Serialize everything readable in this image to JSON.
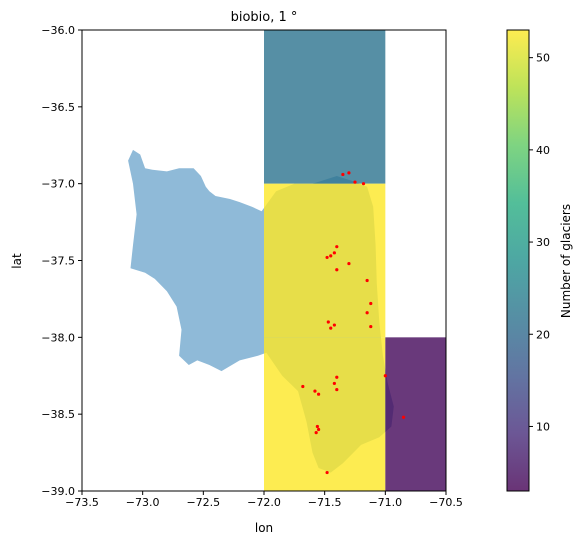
{
  "chart_data": {
    "type": "heatmap",
    "title": "biobio, 1 °",
    "xlabel": "lon",
    "ylabel": "lat",
    "xlim": [
      -73.5,
      -70.5
    ],
    "ylim": [
      -39.0,
      -36.0
    ],
    "x_ticks": [
      -73.5,
      -73.0,
      -72.5,
      -72.0,
      -71.5,
      -71.0,
      -70.5
    ],
    "x_tick_labels": [
      "−73.5",
      "−73.0",
      "−72.5",
      "−72.0",
      "−71.5",
      "−71.0",
      "−70.5"
    ],
    "y_ticks": [
      -36.0,
      -36.5,
      -37.0,
      -37.5,
      -38.0,
      -38.5,
      -39.0
    ],
    "y_tick_labels": [
      "−36.0",
      "−36.5",
      "−37.0",
      "−37.5",
      "−38.0",
      "−38.5",
      "−39.0"
    ],
    "grid": false,
    "cells": [
      {
        "lon_min": -72.0,
        "lon_max": -71.0,
        "lat_min": -37.0,
        "lat_max": -36.0,
        "value": 22
      },
      {
        "lon_min": -72.0,
        "lon_max": -71.0,
        "lat_min": -38.0,
        "lat_max": -37.0,
        "value": 53
      },
      {
        "lon_min": -72.0,
        "lon_max": -71.0,
        "lat_min": -39.0,
        "lat_max": -38.0,
        "value": 53
      },
      {
        "lon_min": -71.0,
        "lon_max": -70.5,
        "lat_min": -39.0,
        "lat_max": -38.0,
        "value": 4
      }
    ],
    "basin_outline": [
      [
        -73.08,
        -36.78
      ],
      [
        -73.02,
        -36.81
      ],
      [
        -72.98,
        -36.9
      ],
      [
        -72.92,
        -36.91
      ],
      [
        -72.8,
        -36.92
      ],
      [
        -72.7,
        -36.9
      ],
      [
        -72.58,
        -36.9
      ],
      [
        -72.52,
        -36.95
      ],
      [
        -72.48,
        -37.02
      ],
      [
        -72.45,
        -37.05
      ],
      [
        -72.4,
        -37.08
      ],
      [
        -72.28,
        -37.1
      ],
      [
        -72.2,
        -37.12
      ],
      [
        -72.1,
        -37.15
      ],
      [
        -72.02,
        -37.18
      ],
      [
        -71.9,
        -37.05
      ],
      [
        -71.75,
        -37.0
      ],
      [
        -71.6,
        -37.0
      ],
      [
        -71.4,
        -36.95
      ],
      [
        -71.28,
        -36.98
      ],
      [
        -71.15,
        -37.02
      ],
      [
        -71.1,
        -37.15
      ],
      [
        -71.08,
        -37.4
      ],
      [
        -71.07,
        -37.65
      ],
      [
        -71.05,
        -37.9
      ],
      [
        -71.02,
        -38.12
      ],
      [
        -70.98,
        -38.3
      ],
      [
        -70.93,
        -38.45
      ],
      [
        -70.95,
        -38.58
      ],
      [
        -71.05,
        -38.65
      ],
      [
        -71.2,
        -38.7
      ],
      [
        -71.35,
        -38.82
      ],
      [
        -71.45,
        -38.88
      ],
      [
        -71.55,
        -38.85
      ],
      [
        -71.6,
        -38.75
      ],
      [
        -71.65,
        -38.55
      ],
      [
        -71.72,
        -38.35
      ],
      [
        -71.85,
        -38.25
      ],
      [
        -71.98,
        -38.1
      ],
      [
        -72.05,
        -38.12
      ],
      [
        -72.2,
        -38.15
      ],
      [
        -72.35,
        -38.22
      ],
      [
        -72.45,
        -38.18
      ],
      [
        -72.55,
        -38.15
      ],
      [
        -72.62,
        -38.18
      ],
      [
        -72.7,
        -38.12
      ],
      [
        -72.68,
        -37.95
      ],
      [
        -72.72,
        -37.8
      ],
      [
        -72.8,
        -37.7
      ],
      [
        -72.9,
        -37.62
      ],
      [
        -72.98,
        -37.58
      ],
      [
        -73.1,
        -37.55
      ],
      [
        -73.08,
        -37.4
      ],
      [
        -73.05,
        -37.2
      ],
      [
        -73.08,
        -37.0
      ],
      [
        -73.12,
        -36.85
      ]
    ],
    "glaciers": [
      [
        -71.35,
        -36.94
      ],
      [
        -71.3,
        -36.93
      ],
      [
        -71.25,
        -36.99
      ],
      [
        -71.18,
        -37.0
      ],
      [
        -71.4,
        -37.41
      ],
      [
        -71.42,
        -37.45
      ],
      [
        -71.45,
        -37.47
      ],
      [
        -71.48,
        -37.48
      ],
      [
        -71.4,
        -37.56
      ],
      [
        -71.15,
        -37.63
      ],
      [
        -71.3,
        -37.52
      ],
      [
        -71.45,
        -37.94
      ],
      [
        -71.47,
        -37.9
      ],
      [
        -71.42,
        -37.92
      ],
      [
        -71.15,
        -37.84
      ],
      [
        -71.12,
        -37.93
      ],
      [
        -71.12,
        -37.78
      ],
      [
        -71.4,
        -38.26
      ],
      [
        -71.42,
        -38.3
      ],
      [
        -71.4,
        -38.34
      ],
      [
        -71.55,
        -38.37
      ],
      [
        -71.58,
        -38.35
      ],
      [
        -71.56,
        -38.58
      ],
      [
        -71.57,
        -38.62
      ],
      [
        -71.55,
        -38.6
      ],
      [
        -71.68,
        -38.32
      ],
      [
        -71.0,
        -38.25
      ],
      [
        -70.85,
        -38.52
      ],
      [
        -71.48,
        -38.88
      ]
    ]
  },
  "colorbar": {
    "label": "Number of glaciers",
    "vmin": 3,
    "vmax": 53,
    "ticks": [
      10,
      20,
      30,
      40,
      50
    ],
    "tick_labels": [
      "10",
      "20",
      "30",
      "40",
      "50"
    ]
  },
  "colors": {
    "basin": "#8fbad8",
    "glacier": "#ff0000",
    "cell_opacity": 0.8
  }
}
